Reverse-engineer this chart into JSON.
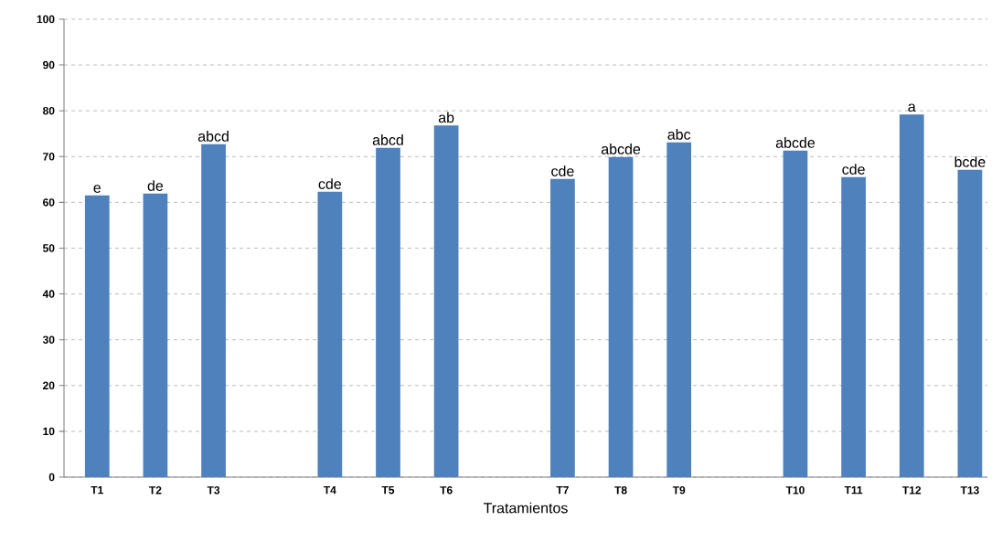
{
  "chart_data": {
    "type": "bar",
    "xlabel": "Tratamientos",
    "categories": [
      "T1",
      "T2",
      "T3",
      null,
      "T4",
      "T5",
      "T6",
      null,
      "T7",
      "T8",
      "T9",
      null,
      "T10",
      "T11",
      "T12",
      "T13"
    ],
    "values": [
      61.5,
      61.9,
      72.7,
      null,
      62.3,
      71.9,
      76.8,
      null,
      65.1,
      69.9,
      73.1,
      null,
      71.3,
      65.5,
      79.2,
      67.1
    ],
    "value_labels": [
      "e",
      "de",
      "abcd",
      null,
      "cde",
      "abcd",
      "ab",
      null,
      "cde",
      "abcde",
      "abc",
      null,
      "abcde",
      "cde",
      "a",
      "bcde"
    ],
    "color": "#4f81bd",
    "ylim": [
      0,
      100
    ],
    "yticks": [
      0,
      10,
      20,
      30,
      40,
      50,
      60,
      70,
      80,
      90,
      100
    ],
    "grid": "y"
  }
}
